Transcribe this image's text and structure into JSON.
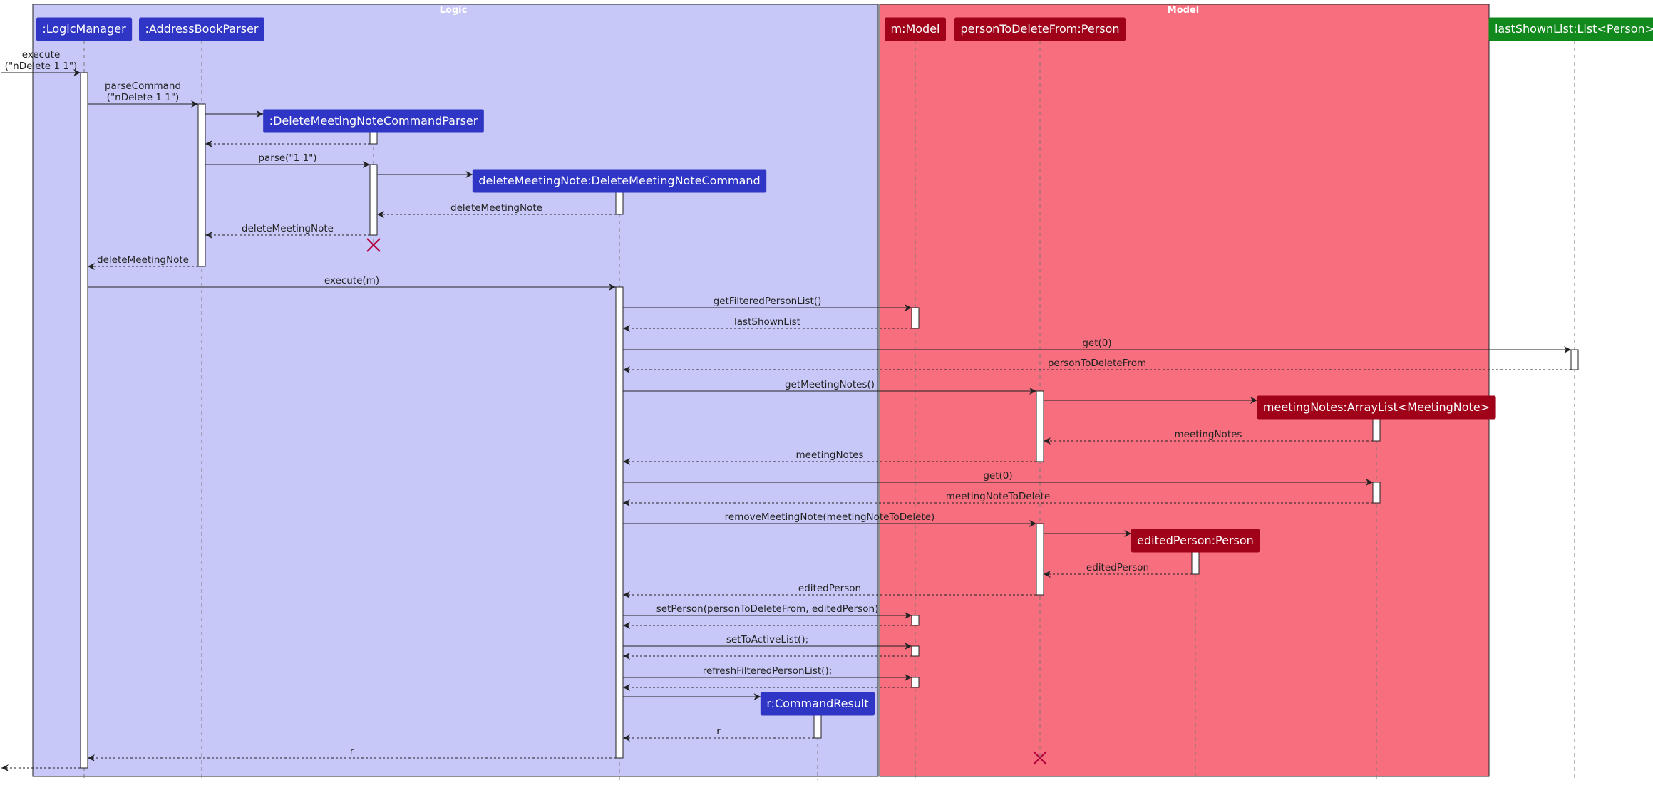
{
  "diagram_type": "sequence",
  "colors": {
    "logic_box": "#C8C8F8",
    "model_box": "#F76E7E",
    "logic_participant": "#2F35C4",
    "model_participant": "#A0021A",
    "list_participant": "#11891C",
    "lifeline": "#777777",
    "arrow": "#222222",
    "destroy": "#B0003A"
  },
  "boxes": [
    {
      "id": "logic",
      "title": "Logic"
    },
    {
      "id": "model",
      "title": "Model"
    }
  ],
  "participants": [
    {
      "id": "lm",
      "label": ":LogicManager",
      "box": "logic"
    },
    {
      "id": "abp",
      "label": ":AddressBookParser",
      "box": "logic"
    },
    {
      "id": "dp",
      "label": ":DeleteMeetingNoteCommandParser",
      "box": "logic"
    },
    {
      "id": "dc",
      "label": "deleteMeetingNote:DeleteMeetingNoteCommand",
      "box": "logic"
    },
    {
      "id": "cr",
      "label": "r:CommandResult",
      "box": "logic"
    },
    {
      "id": "mm",
      "label": "m:Model",
      "box": "model"
    },
    {
      "id": "pd",
      "label": "personToDeleteFrom:Person",
      "box": "model"
    },
    {
      "id": "ep",
      "label": "editedPerson:Person",
      "box": "model"
    },
    {
      "id": "mn",
      "label": "meetingNotes:ArrayList<MeetingNote>",
      "box": "model"
    },
    {
      "id": "ls",
      "label": "lastShownList:List<Person>",
      "box": "none"
    }
  ],
  "messages": [
    {
      "from": "ext",
      "to": "lm",
      "label": [
        "execute",
        "(\"nDelete 1 1\")"
      ],
      "kind": "call"
    },
    {
      "from": "lm",
      "to": "abp",
      "label": [
        "parseCommand",
        "(\"nDelete 1 1\")"
      ],
      "kind": "call"
    },
    {
      "from": "abp",
      "to": "dp",
      "label": [],
      "kind": "create"
    },
    {
      "from": "dp",
      "to": "abp",
      "label": [],
      "kind": "return"
    },
    {
      "from": "abp",
      "to": "dp",
      "label": [
        "parse(\"1 1\")"
      ],
      "kind": "call"
    },
    {
      "from": "dp",
      "to": "dc",
      "label": [],
      "kind": "create"
    },
    {
      "from": "dc",
      "to": "dp",
      "label": [
        "deleteMeetingNote"
      ],
      "kind": "return"
    },
    {
      "from": "dp",
      "to": "abp",
      "label": [
        "deleteMeetingNote"
      ],
      "kind": "return"
    },
    {
      "from": "abp",
      "to": "lm",
      "label": [
        "deleteMeetingNote"
      ],
      "kind": "return"
    },
    {
      "from": "lm",
      "to": "dc",
      "label": [
        "execute(m)"
      ],
      "kind": "call"
    },
    {
      "from": "dc",
      "to": "mm",
      "label": [
        "getFilteredPersonList()"
      ],
      "kind": "call"
    },
    {
      "from": "mm",
      "to": "dc",
      "label": [
        "lastShownList"
      ],
      "kind": "return"
    },
    {
      "from": "dc",
      "to": "ls",
      "label": [
        "get(0)"
      ],
      "kind": "call"
    },
    {
      "from": "ls",
      "to": "dc",
      "label": [
        "personToDeleteFrom"
      ],
      "kind": "return"
    },
    {
      "from": "dc",
      "to": "pd",
      "label": [
        "getMeetingNotes()"
      ],
      "kind": "call"
    },
    {
      "from": "pd",
      "to": "mn",
      "label": [],
      "kind": "create"
    },
    {
      "from": "mn",
      "to": "pd",
      "label": [
        "meetingNotes"
      ],
      "kind": "return"
    },
    {
      "from": "pd",
      "to": "dc",
      "label": [
        "meetingNotes"
      ],
      "kind": "return"
    },
    {
      "from": "dc",
      "to": "mn",
      "label": [
        "get(0)"
      ],
      "kind": "call"
    },
    {
      "from": "mn",
      "to": "dc",
      "label": [
        "meetingNoteToDelete"
      ],
      "kind": "return"
    },
    {
      "from": "dc",
      "to": "pd",
      "label": [
        "removeMeetingNote(meetingNoteToDelete)"
      ],
      "kind": "call"
    },
    {
      "from": "pd",
      "to": "ep",
      "label": [],
      "kind": "create"
    },
    {
      "from": "ep",
      "to": "pd",
      "label": [
        "editedPerson"
      ],
      "kind": "return"
    },
    {
      "from": "pd",
      "to": "dc",
      "label": [
        "editedPerson"
      ],
      "kind": "return"
    },
    {
      "from": "dc",
      "to": "mm",
      "label": [
        "setPerson(personToDeleteFrom, editedPerson)"
      ],
      "kind": "call"
    },
    {
      "from": "mm",
      "to": "dc",
      "label": [],
      "kind": "return"
    },
    {
      "from": "dc",
      "to": "mm",
      "label": [
        "setToActiveList();"
      ],
      "kind": "call"
    },
    {
      "from": "mm",
      "to": "dc",
      "label": [],
      "kind": "return"
    },
    {
      "from": "dc",
      "to": "mm",
      "label": [
        "refreshFilteredPersonList();"
      ],
      "kind": "call"
    },
    {
      "from": "mm",
      "to": "dc",
      "label": [],
      "kind": "return"
    },
    {
      "from": "dc",
      "to": "cr",
      "label": [],
      "kind": "create"
    },
    {
      "from": "cr",
      "to": "dc",
      "label": [
        "r"
      ],
      "kind": "return"
    },
    {
      "from": "dc",
      "to": "lm",
      "label": [
        "r"
      ],
      "kind": "return"
    },
    {
      "from": "lm",
      "to": "ext",
      "label": [],
      "kind": "return"
    }
  ],
  "destroyed": [
    "dp",
    "pd"
  ]
}
